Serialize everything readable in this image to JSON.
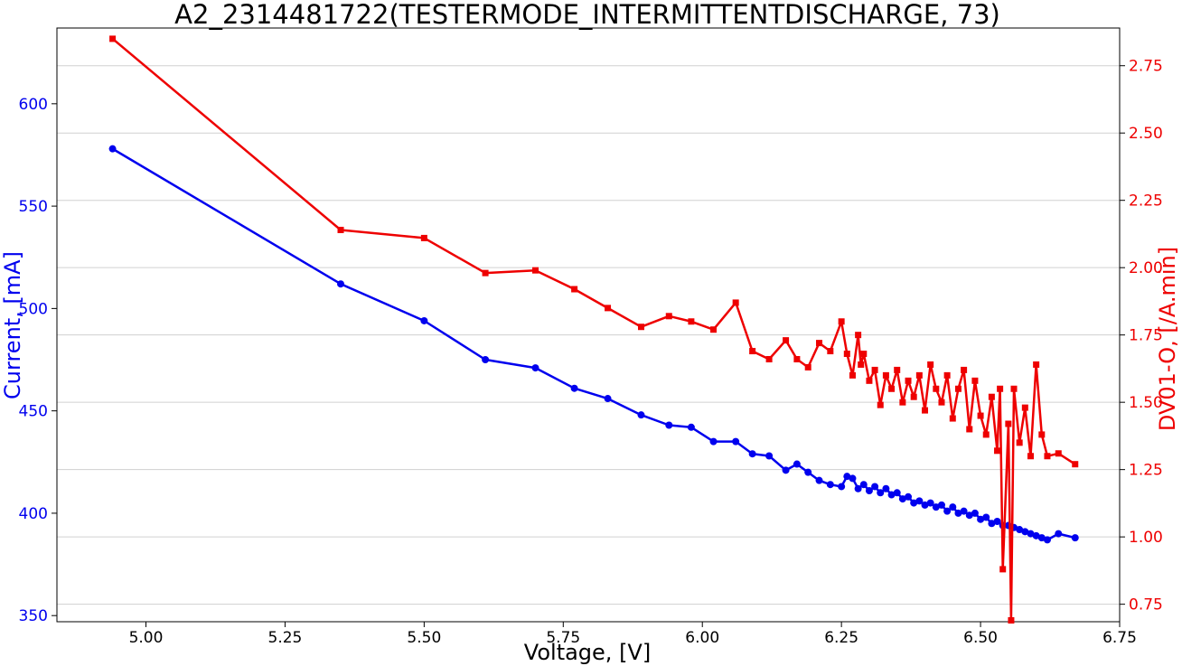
{
  "chart_data": {
    "type": "line",
    "title": "A2_2314481722(TESTERMODE_INTERMITTENTDISCHARGE, 73)",
    "xlabel": "Voltage, [V]",
    "ylabel_left": "Current, [mA]",
    "ylabel_right": "DV01-O, [/A.min]",
    "xlim": [
      4.84,
      6.75
    ],
    "ylim_left": [
      347,
      637
    ],
    "ylim_right": [
      0.685,
      2.89
    ],
    "xticks": [
      "5.00",
      "5.25",
      "5.50",
      "5.75",
      "6.00",
      "6.25",
      "6.50",
      "6.75"
    ],
    "yticks_left": [
      "350",
      "400",
      "450",
      "500",
      "550",
      "600"
    ],
    "yticks_right": [
      "0.75",
      "1.00",
      "1.25",
      "1.50",
      "1.75",
      "2.00",
      "2.25",
      "2.50",
      "2.75"
    ],
    "grid": "horizontal (right axis)",
    "colors": {
      "current": "#0000ee",
      "dv": "#ee0000"
    },
    "series": [
      {
        "axis": "left",
        "marker": "circle",
        "color": "#0000ee",
        "x": [
          4.94,
          5.35,
          5.5,
          5.61,
          5.7,
          5.77,
          5.83,
          5.89,
          5.94,
          5.98,
          6.02,
          6.06,
          6.09,
          6.12,
          6.15,
          6.17,
          6.19,
          6.21,
          6.23,
          6.25,
          6.26,
          6.27,
          6.28,
          6.29,
          6.3,
          6.31,
          6.32,
          6.33,
          6.34,
          6.35,
          6.36,
          6.37,
          6.38,
          6.39,
          6.4,
          6.41,
          6.42,
          6.43,
          6.44,
          6.45,
          6.46,
          6.47,
          6.48,
          6.49,
          6.5,
          6.51,
          6.52,
          6.53,
          6.54,
          6.55,
          6.56,
          6.57,
          6.58,
          6.59,
          6.6,
          6.61,
          6.62,
          6.64,
          6.67
        ],
        "values": [
          578,
          512,
          494,
          475,
          471,
          461,
          456,
          448,
          443,
          442,
          435,
          435,
          429,
          428,
          421,
          424,
          420,
          416,
          414,
          413,
          418,
          417,
          412,
          414,
          411,
          413,
          410,
          412,
          409,
          410,
          407,
          408,
          405,
          406,
          404,
          405,
          403,
          404,
          401,
          403,
          400,
          401,
          399,
          400,
          397,
          398,
          395,
          396,
          394,
          394,
          393,
          392,
          391,
          390,
          389,
          388,
          387,
          390,
          388
        ]
      },
      {
        "axis": "right",
        "marker": "square",
        "color": "#ee0000",
        "x": [
          4.94,
          5.35,
          5.5,
          5.61,
          5.7,
          5.77,
          5.83,
          5.89,
          5.94,
          5.98,
          6.02,
          6.06,
          6.09,
          6.12,
          6.15,
          6.17,
          6.19,
          6.21,
          6.23,
          6.25,
          6.26,
          6.27,
          6.28,
          6.285,
          6.29,
          6.3,
          6.31,
          6.32,
          6.33,
          6.34,
          6.35,
          6.36,
          6.37,
          6.38,
          6.39,
          6.4,
          6.41,
          6.42,
          6.43,
          6.44,
          6.45,
          6.46,
          6.47,
          6.48,
          6.49,
          6.5,
          6.51,
          6.52,
          6.53,
          6.535,
          6.54,
          6.55,
          6.555,
          6.56,
          6.57,
          6.58,
          6.59,
          6.6,
          6.61,
          6.62,
          6.64,
          6.67
        ],
        "values": [
          2.85,
          2.14,
          2.11,
          1.98,
          1.99,
          1.92,
          1.85,
          1.78,
          1.82,
          1.8,
          1.77,
          1.87,
          1.69,
          1.66,
          1.73,
          1.66,
          1.63,
          1.72,
          1.69,
          1.8,
          1.68,
          1.6,
          1.75,
          1.64,
          1.68,
          1.58,
          1.62,
          1.49,
          1.6,
          1.55,
          1.62,
          1.5,
          1.58,
          1.52,
          1.6,
          1.47,
          1.64,
          1.55,
          1.5,
          1.6,
          1.44,
          1.55,
          1.62,
          1.4,
          1.58,
          1.45,
          1.38,
          1.52,
          1.32,
          1.55,
          0.88,
          1.42,
          0.69,
          1.55,
          1.35,
          1.48,
          1.3,
          1.64,
          1.38,
          1.3,
          1.31,
          1.27
        ]
      }
    ]
  }
}
